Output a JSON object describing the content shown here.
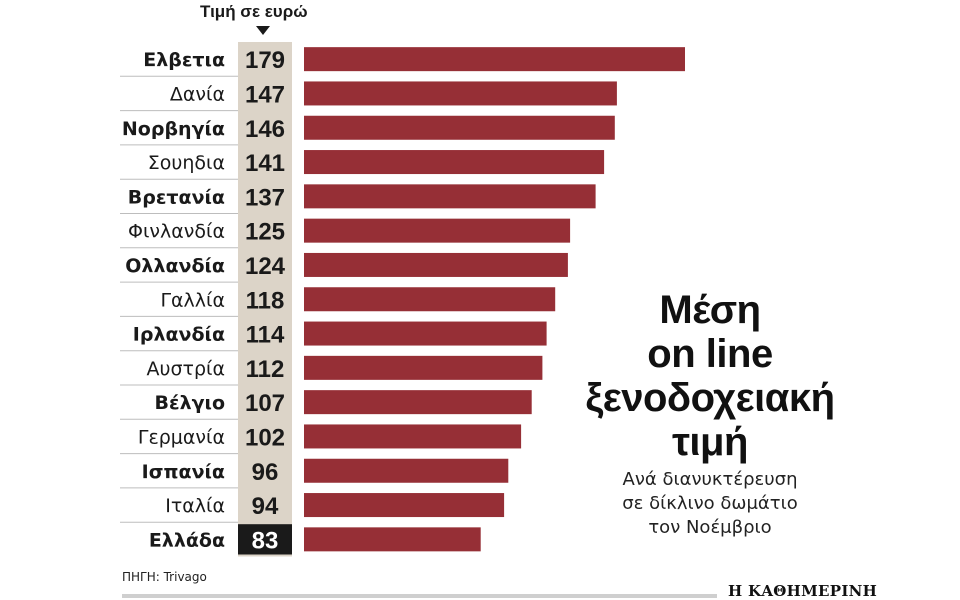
{
  "chart_data": {
    "type": "bar",
    "orientation": "horizontal",
    "title": "Μέση\non line\nξενοδοχειακή\nτιμή",
    "subtitle": "Ανά διανυκτέρευση\nσε δίκλινο δωμάτιο\nτον Νοέμβριο",
    "value_header": "Τιμή σε ευρώ",
    "categories": [
      "Ελβετια",
      "Δανία",
      "Νορβηγία",
      "Σουηδια",
      "Βρετανία",
      "Φινλανδία",
      "Ολλανδία",
      "Γαλλία",
      "Ιρλανδία",
      "Αυστρία",
      "Βέλγιο",
      "Γερμανία",
      "Ισπανία",
      "Ιταλία",
      "Ελλάδα"
    ],
    "values": [
      179,
      147,
      146,
      141,
      137,
      125,
      124,
      118,
      114,
      112,
      107,
      102,
      96,
      94,
      83
    ],
    "bold_categories": [
      0,
      2,
      4,
      6,
      8,
      10,
      12,
      14
    ],
    "highlight_index": 14,
    "xlim": [
      0,
      180
    ],
    "grid": false,
    "legend": "none",
    "colors": {
      "bar": "#962f36",
      "value_column": "#dcd4c8",
      "highlight_value_bg": "#1a1a1a",
      "highlight_value_text": "#ffffff",
      "text": "#1a1a1a",
      "separator": "#bdbdbd"
    }
  },
  "source": "ΠΗΓΗ: Trivago",
  "logo": "Η ΚΑΘΗΜΕΡΙΝΗ"
}
